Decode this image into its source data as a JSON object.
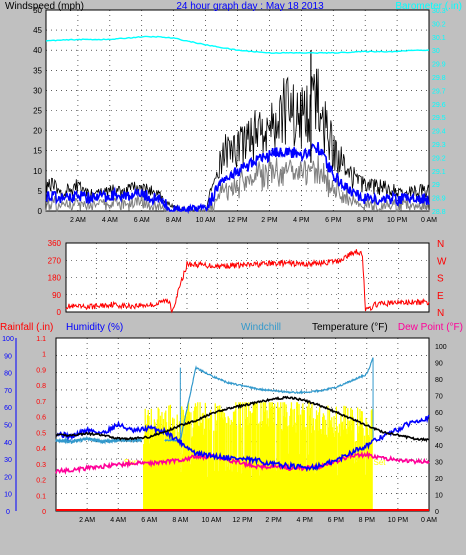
{
  "chart_data": [
    {
      "type": "line",
      "title": "24 hour graph day : May 18 2013",
      "left_axis_label": "Windspeed (mph)",
      "right_axis_label": "Barometer (.in)",
      "y_left": {
        "min": 0,
        "max": 50,
        "ticks": [
          "0",
          "5",
          "10",
          "15",
          "20",
          "25",
          "30",
          "35",
          "40",
          "45",
          "50"
        ]
      },
      "y_right": {
        "min": 28.8,
        "max": 30.3,
        "ticks": [
          "28.8",
          "28.9",
          "29",
          "29.1",
          "29.2",
          "29.3",
          "29.4",
          "29.5",
          "29.6",
          "29.7",
          "29.8",
          "29.9",
          "30",
          "30.1",
          "30.2",
          "30.3"
        ]
      },
      "x_ticks": [
        "2 AM",
        "4 AM",
        "6 AM",
        "8 AM",
        "10 AM",
        "12 PM",
        "2 PM",
        "4 PM",
        "6 PM",
        "8 PM",
        "10 PM",
        "0 AM"
      ],
      "grid": true,
      "colors": {
        "gust": "#000000",
        "avg": "#0000ff",
        "low": "#808080",
        "barometer": "#00ffff",
        "bg": "#ffffff"
      },
      "series": [
        {
          "name": "Gust",
          "x": [
            0,
            1,
            2,
            3,
            4,
            5,
            6,
            7,
            8,
            9,
            10,
            11,
            12,
            13,
            14,
            15,
            16,
            17,
            18,
            19,
            20,
            21,
            22,
            23,
            24
          ],
          "values": [
            7,
            5,
            6,
            4,
            5,
            5,
            6,
            4,
            1,
            0,
            0,
            14,
            16,
            19,
            22,
            25,
            23,
            27,
            15,
            9,
            6,
            6,
            5,
            5,
            5
          ],
          "spike": {
            "x": 16.6,
            "value": 40
          }
        },
        {
          "name": "Average",
          "x": [
            0,
            1,
            2,
            3,
            4,
            5,
            6,
            7,
            8,
            9,
            10,
            11,
            12,
            13,
            14,
            15,
            16,
            17,
            18,
            19,
            20,
            21,
            22,
            23,
            24
          ],
          "values": [
            4,
            3,
            4,
            3,
            4,
            4,
            4,
            3,
            0,
            0,
            0,
            8,
            10,
            12,
            14,
            15,
            14,
            16,
            9,
            5,
            3,
            3,
            3,
            3,
            3
          ]
        },
        {
          "name": "Barometer",
          "x": [
            0,
            2,
            4,
            6,
            7,
            8,
            10,
            12,
            14,
            16,
            18,
            20,
            22,
            23,
            24
          ],
          "values": [
            30.07,
            30.08,
            30.08,
            30.1,
            30.1,
            30.09,
            30.04,
            30.0,
            29.98,
            29.98,
            29.98,
            29.99,
            29.99,
            30.0,
            30.0
          ]
        }
      ]
    },
    {
      "type": "line",
      "y_left": {
        "min": 0,
        "max": 360,
        "ticks": [
          "0",
          "90",
          "180",
          "270",
          "360"
        ]
      },
      "right_labels": [
        "N",
        "W",
        "S",
        "E",
        "N"
      ],
      "grid": true,
      "colors": {
        "line": "#ff0000",
        "bg": "#ffffff"
      },
      "series": [
        {
          "name": "Wind direction",
          "x": [
            0,
            1,
            2,
            3,
            4,
            5,
            6,
            6.5,
            6.9,
            7.0,
            8,
            10,
            12,
            14,
            16,
            18,
            19.2,
            19.6,
            19.8,
            20.5,
            22,
            24
          ],
          "values": [
            30,
            25,
            30,
            40,
            30,
            35,
            40,
            60,
            50,
            0,
            250,
            240,
            245,
            255,
            250,
            265,
            320,
            300,
            5,
            40,
            50,
            50
          ]
        }
      ]
    },
    {
      "type": "line",
      "labels_top": {
        "rainfall": "Rainfall (.in)",
        "humidity": "Humidity (%)",
        "windchill": "Windchill",
        "temperature": "Temperature (°F)",
        "dewpoint": "Dew Point (°F)"
      },
      "y_humidity": {
        "min": 0,
        "max": 100,
        "ticks": [
          "0",
          "10",
          "20",
          "30",
          "40",
          "50",
          "60",
          "70",
          "80",
          "90",
          "100"
        ]
      },
      "y_rain": {
        "min": 0,
        "max": 1.1,
        "ticks": [
          "0",
          "0.1",
          "0.2",
          "0.3",
          "0.4",
          "0.5",
          "0.6",
          "0.7",
          "0.8",
          "0.9",
          "1",
          "1.1"
        ]
      },
      "y_temp": {
        "min": 0,
        "max": 105,
        "ticks": [
          "0",
          "10",
          "20",
          "30",
          "40",
          "50",
          "60",
          "70",
          "80",
          "90",
          "100"
        ]
      },
      "sun_labels": {
        "rise": "Sun",
        "set": "Set"
      },
      "sunrise_hour": 5.6,
      "sunset_hour": 20.3,
      "grid": true,
      "colors": {
        "temperature": "#000000",
        "humidity": "#0000ff",
        "windchill": "#3399cc",
        "dewpoint": "#ff0099",
        "rainfall": "#ff0000",
        "sunshine": "#ffff00",
        "bg": "#ffffff"
      },
      "series": [
        {
          "name": "Temperature",
          "axis": "temp",
          "x": [
            0,
            1,
            2,
            3,
            4,
            5,
            6,
            7,
            8,
            9,
            10,
            11,
            12,
            13,
            14,
            15,
            16,
            17,
            18,
            19,
            20,
            21,
            22,
            23,
            24
          ],
          "values": [
            46,
            46,
            47,
            46,
            44,
            44,
            45,
            48,
            52,
            55,
            59,
            62,
            64,
            66,
            68,
            69,
            67,
            64,
            60,
            56,
            52,
            48,
            46,
            44,
            43
          ]
        },
        {
          "name": "Humidity",
          "axis": "hum",
          "x": [
            0,
            1,
            2,
            3,
            4,
            5,
            6,
            7,
            8,
            9,
            10,
            11,
            12,
            13,
            14,
            15,
            16,
            17,
            18,
            19,
            20,
            21,
            22,
            23,
            24
          ],
          "values": [
            45,
            43,
            47,
            45,
            50,
            46,
            48,
            46,
            40,
            33,
            32,
            31,
            30,
            29,
            27,
            26,
            25,
            26,
            29,
            34,
            38,
            43,
            47,
            52,
            54
          ]
        },
        {
          "name": "Windchill",
          "axis": "temp",
          "x": [
            0,
            1,
            2,
            3,
            4,
            5,
            5.5,
            7,
            8,
            9,
            10,
            11,
            12,
            13,
            14,
            15,
            16,
            17,
            18,
            19,
            20,
            20.4
          ],
          "values": [
            43,
            42,
            44,
            42,
            43,
            43,
            43,
            43,
            43,
            87,
            82,
            78,
            76,
            74,
            73,
            72,
            72,
            73,
            75,
            79,
            83,
            93
          ]
        },
        {
          "name": "Dew Point",
          "axis": "temp",
          "x": [
            0,
            1,
            2,
            3,
            4,
            5,
            6,
            7,
            8,
            9,
            10,
            11,
            12,
            13,
            14,
            15,
            16,
            17,
            18,
            19,
            20,
            21,
            22,
            23,
            24
          ],
          "values": [
            24,
            25,
            26,
            27,
            28,
            29,
            29,
            30,
            31,
            33,
            33,
            31,
            29,
            27,
            27,
            26,
            26,
            27,
            30,
            34,
            34,
            32,
            31,
            30,
            30
          ]
        },
        {
          "name": "Rainfall",
          "axis": "rain",
          "x": [
            0,
            24
          ],
          "values": [
            0,
            0
          ]
        }
      ]
    }
  ]
}
